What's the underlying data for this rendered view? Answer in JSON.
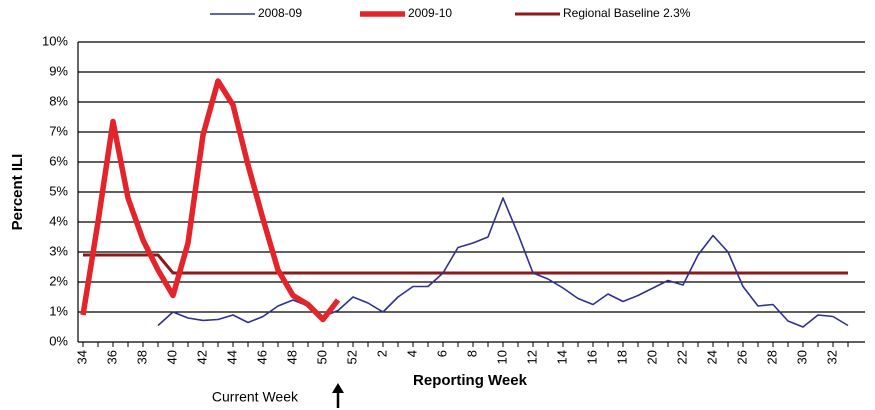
{
  "chart_data": {
    "type": "line",
    "xlabel": "Reporting Week",
    "ylabel": "Percent ILI",
    "annotation": "Current Week",
    "categories": [
      "34",
      null,
      "36",
      null,
      "38",
      null,
      "40",
      null,
      "42",
      null,
      "44",
      null,
      "46",
      null,
      "48",
      null,
      "50",
      null,
      "52",
      null,
      "2",
      null,
      "4",
      null,
      "6",
      null,
      "8",
      null,
      "10",
      null,
      "12",
      null,
      "14",
      null,
      "16",
      null,
      "18",
      null,
      "20",
      null,
      "22",
      null,
      "24",
      null,
      "26",
      null,
      "28",
      null,
      "30",
      null,
      "32",
      null
    ],
    "series": [
      {
        "name": "2008-09",
        "color": "#2e3192",
        "width": 1.6,
        "values": [
          null,
          null,
          null,
          null,
          null,
          0.55,
          1.0,
          0.8,
          0.72,
          0.75,
          0.9,
          0.65,
          0.85,
          1.2,
          1.4,
          1.2,
          0.85,
          1.05,
          1.5,
          1.3,
          1.0,
          1.5,
          1.85,
          1.85,
          2.3,
          3.15,
          3.3,
          3.5,
          4.8,
          3.6,
          2.3,
          2.1,
          1.8,
          1.45,
          1.25,
          1.6,
          1.35,
          1.55,
          1.8,
          2.05,
          1.9,
          2.9,
          3.55,
          3.0,
          1.85,
          1.2,
          1.25,
          0.7,
          0.5,
          0.9,
          0.85,
          0.55
        ]
      },
      {
        "name": "2009-10",
        "color": "#e3242b",
        "width": 5.5,
        "values": [
          0.9,
          4.0,
          7.35,
          4.8,
          3.4,
          2.4,
          1.55,
          3.3,
          6.9,
          8.7,
          7.9,
          5.9,
          4.1,
          2.4,
          1.55,
          1.25,
          0.75,
          1.4,
          null,
          null,
          null,
          null,
          null,
          null,
          null,
          null,
          null,
          null,
          null,
          null,
          null,
          null,
          null,
          null,
          null,
          null,
          null,
          null,
          null,
          null,
          null,
          null,
          null,
          null,
          null,
          null,
          null,
          null,
          null,
          null,
          null,
          null
        ]
      },
      {
        "name": "Regional Baseline 2.3%",
        "color": "#8b1a1a",
        "width": 3,
        "values": [
          2.9,
          2.9,
          2.9,
          2.9,
          2.9,
          2.9,
          2.3,
          2.3,
          2.3,
          2.3,
          2.3,
          2.3,
          2.3,
          2.3,
          2.3,
          2.3,
          2.3,
          2.3,
          2.3,
          2.3,
          2.3,
          2.3,
          2.3,
          2.3,
          2.3,
          2.3,
          2.3,
          2.3,
          2.3,
          2.3,
          2.3,
          2.3,
          2.3,
          2.3,
          2.3,
          2.3,
          2.3,
          2.3,
          2.3,
          2.3,
          2.3,
          2.3,
          2.3,
          2.3,
          2.3,
          2.3,
          2.3,
          2.3,
          2.3,
          2.3,
          2.3,
          2.3
        ]
      }
    ],
    "ylim": [
      0,
      10
    ],
    "yticks": [
      {
        "value": 0,
        "label": "0%"
      },
      {
        "value": 1,
        "label": "1%"
      },
      {
        "value": 2,
        "label": "2%"
      },
      {
        "value": 3,
        "label": "3%"
      },
      {
        "value": 4,
        "label": "4%"
      },
      {
        "value": 5,
        "label": "5%"
      },
      {
        "value": 6,
        "label": "6%"
      },
      {
        "value": 7,
        "label": "7%"
      },
      {
        "value": 8,
        "label": "8%"
      },
      {
        "value": 9,
        "label": "9%"
      },
      {
        "value": 10,
        "label": "10%"
      }
    ],
    "grid": true,
    "annotation_index": 17
  }
}
